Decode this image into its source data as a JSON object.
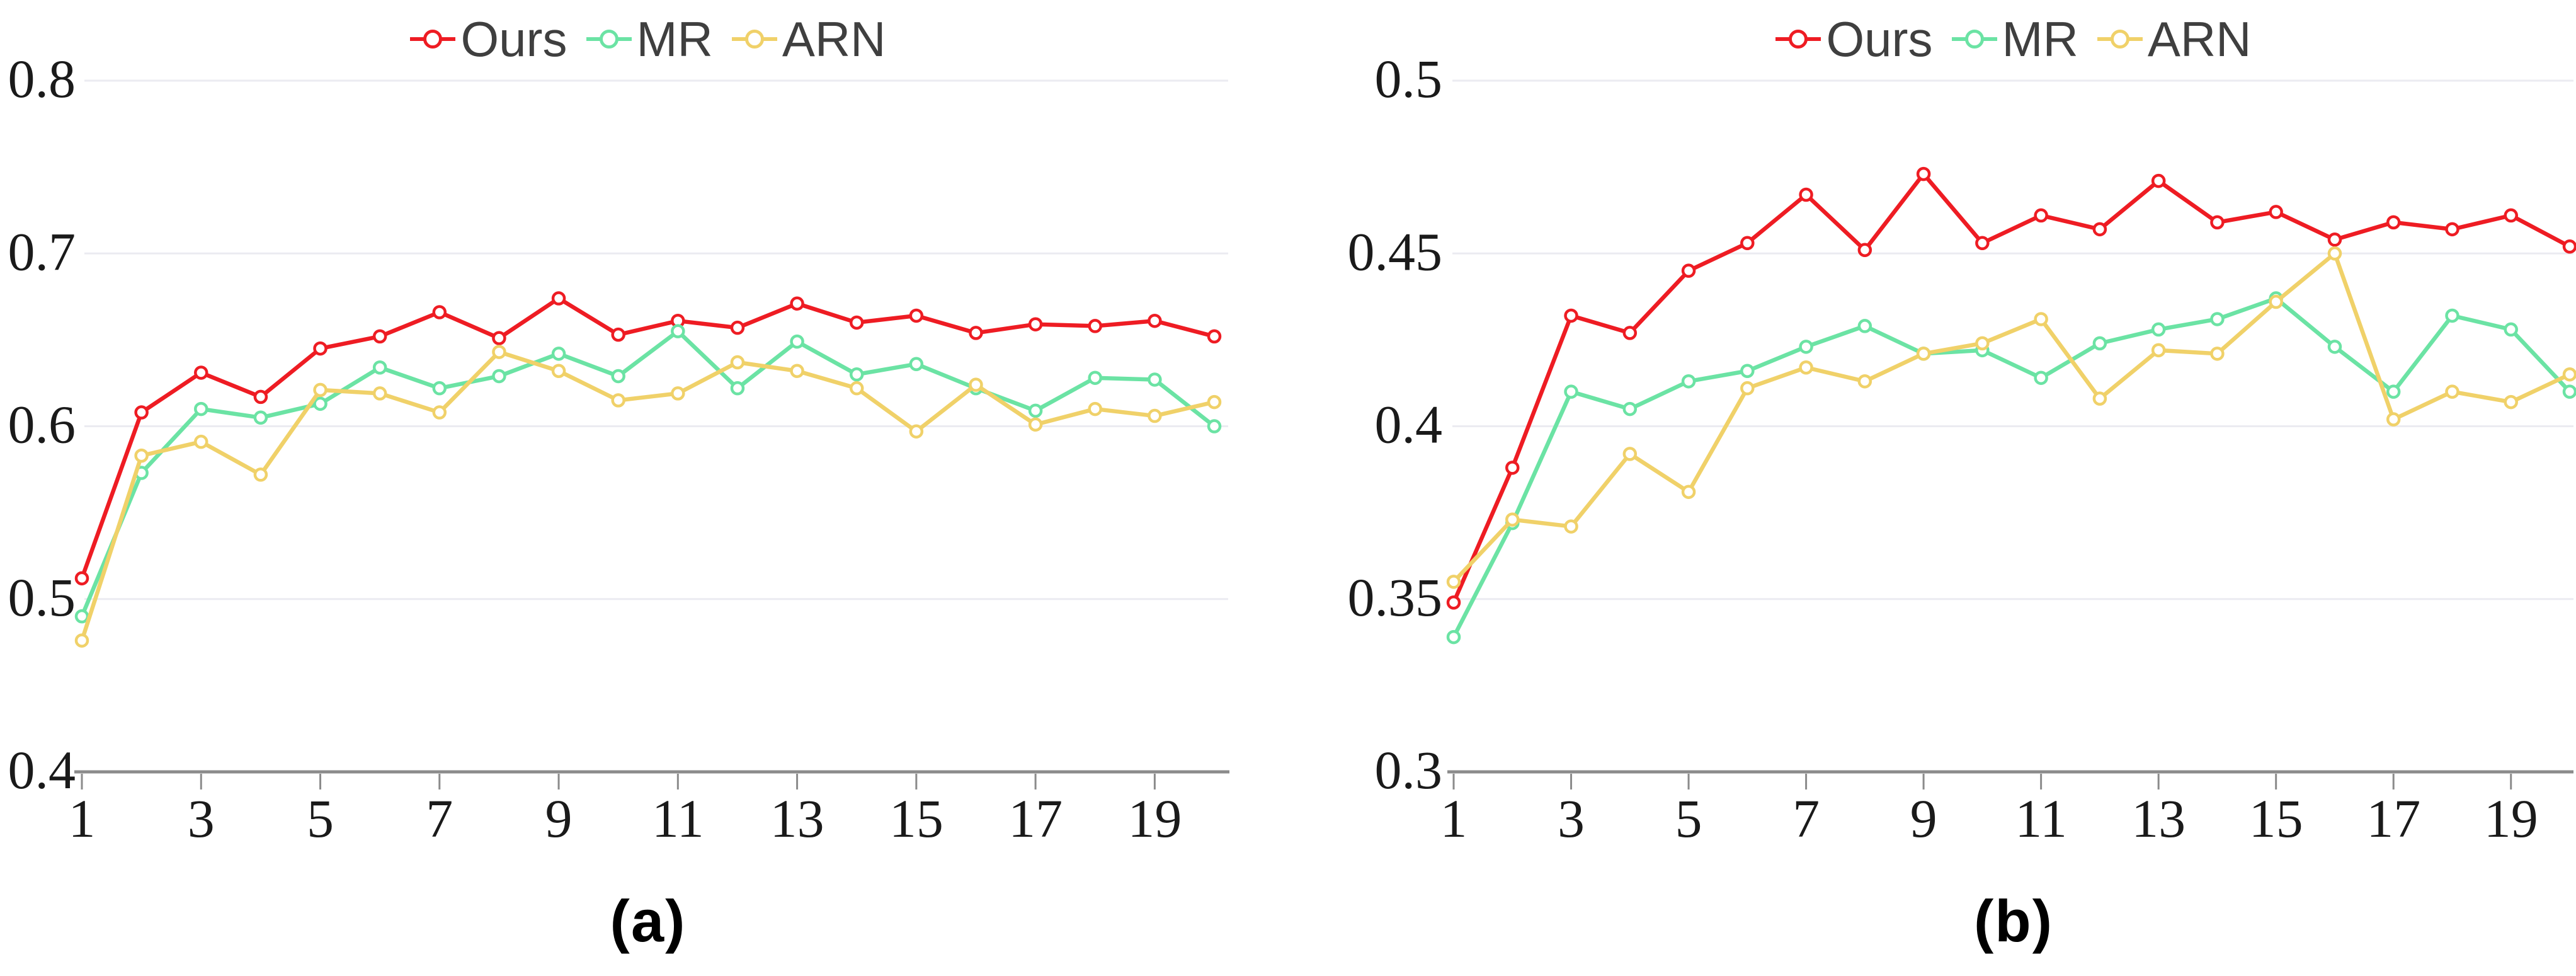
{
  "figure": {
    "background": "#ffffff",
    "colors": {
      "grid": "#ebebf1",
      "axis": "#8b8b8b",
      "tick_text": "#1a1a1a",
      "legend_text": "#3f3f3f",
      "marker_fill": "#ffffff"
    }
  },
  "chart_data": [
    {
      "id": "a",
      "type": "line",
      "caption": "(a)",
      "title": "",
      "xlabel": "",
      "ylabel": "",
      "grid": true,
      "legend_position": "top-center",
      "x": [
        1,
        2,
        3,
        4,
        5,
        6,
        7,
        8,
        9,
        10,
        11,
        12,
        13,
        14,
        15,
        16,
        17,
        18,
        19,
        20
      ],
      "x_axis": {
        "min": 1,
        "max": 20,
        "tick_labels": [
          "1",
          "3",
          "5",
          "7",
          "9",
          "11",
          "13",
          "15",
          "17",
          "19"
        ],
        "tick_values": [
          1,
          3,
          5,
          7,
          9,
          11,
          13,
          15,
          17,
          19
        ]
      },
      "y_axis": {
        "min": 0.4,
        "max": 0.8,
        "tick_labels": [
          "0.8",
          "0.7",
          "0.6",
          "0.5",
          "0.4"
        ],
        "tick_values": [
          0.8,
          0.7,
          0.6,
          0.5,
          0.4
        ]
      },
      "series": [
        {
          "name": "Ours",
          "color": "#ee1c23",
          "values": [
            0.512,
            0.608,
            0.631,
            0.617,
            0.645,
            0.652,
            0.666,
            0.651,
            0.674,
            0.653,
            0.661,
            0.657,
            0.671,
            0.66,
            0.664,
            0.654,
            0.659,
            0.658,
            0.661,
            0.652
          ]
        },
        {
          "name": "MR",
          "color": "#6be3a4",
          "values": [
            0.49,
            0.573,
            0.61,
            0.605,
            0.613,
            0.634,
            0.622,
            0.629,
            0.642,
            0.629,
            0.655,
            0.622,
            0.649,
            0.63,
            0.636,
            0.622,
            0.609,
            0.628,
            0.627,
            0.6
          ]
        },
        {
          "name": "ARN",
          "color": "#f0d169",
          "values": [
            0.476,
            0.583,
            0.591,
            0.572,
            0.621,
            0.619,
            0.608,
            0.643,
            0.632,
            0.615,
            0.619,
            0.637,
            0.632,
            0.622,
            0.597,
            0.624,
            0.601,
            0.61,
            0.606,
            0.614
          ]
        }
      ]
    },
    {
      "id": "b",
      "type": "line",
      "caption": "(b)",
      "title": "",
      "xlabel": "",
      "ylabel": "",
      "grid": true,
      "legend_position": "top-center",
      "x": [
        1,
        2,
        3,
        4,
        5,
        6,
        7,
        8,
        9,
        10,
        11,
        12,
        13,
        14,
        15,
        16,
        17,
        18,
        19,
        20
      ],
      "x_axis": {
        "min": 1,
        "max": 20,
        "tick_labels": [
          "1",
          "3",
          "5",
          "7",
          "9",
          "11",
          "13",
          "15",
          "17",
          "19"
        ],
        "tick_values": [
          1,
          3,
          5,
          7,
          9,
          11,
          13,
          15,
          17,
          19
        ]
      },
      "y_axis": {
        "min": 0.3,
        "max": 0.5,
        "tick_labels": [
          "0.5",
          "0.45",
          "0.4",
          "0.35",
          "0.3"
        ],
        "tick_values": [
          0.5,
          0.45,
          0.4,
          0.35,
          0.3
        ]
      },
      "series": [
        {
          "name": "Ours",
          "color": "#ee1c23",
          "values": [
            0.349,
            0.388,
            0.432,
            0.427,
            0.445,
            0.453,
            0.467,
            0.451,
            0.473,
            0.453,
            0.461,
            0.457,
            0.471,
            0.459,
            0.462,
            0.454,
            0.459,
            0.457,
            0.461,
            0.452
          ]
        },
        {
          "name": "MR",
          "color": "#6be3a4",
          "values": [
            0.339,
            0.372,
            0.41,
            0.405,
            0.413,
            0.416,
            0.423,
            0.429,
            0.421,
            0.422,
            0.414,
            0.424,
            0.428,
            0.431,
            0.437,
            0.423,
            0.41,
            0.432,
            0.428,
            0.41
          ]
        },
        {
          "name": "ARN",
          "color": "#f0d169",
          "values": [
            0.355,
            0.373,
            0.371,
            0.392,
            0.381,
            0.411,
            0.417,
            0.413,
            0.421,
            0.424,
            0.431,
            0.408,
            0.422,
            0.421,
            0.436,
            0.45,
            0.402,
            0.41,
            0.407,
            0.415
          ]
        }
      ]
    }
  ]
}
